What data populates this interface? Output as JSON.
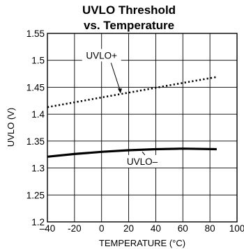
{
  "chart_data": {
    "type": "line",
    "title": [
      "UVLO Threshold",
      "vs. Temperature"
    ],
    "xlabel": "TEMPERATURE (°C)",
    "ylabel": "UVLO (V)",
    "xlim": [
      -40,
      100
    ],
    "ylim": [
      1.2,
      1.55
    ],
    "xticks": [
      -40,
      -20,
      0,
      20,
      40,
      60,
      80,
      100
    ],
    "xtick_labels": [
      "–40",
      "-20",
      "0",
      "20",
      "40",
      "60",
      "80",
      "100"
    ],
    "yticks": [
      1.2,
      1.25,
      1.3,
      1.35,
      1.4,
      1.45,
      1.5,
      1.55
    ],
    "ytick_labels": [
      "1.2",
      "1.25",
      "1.3",
      "1.35",
      "1.4",
      "1.45",
      "1.5",
      "1.55"
    ],
    "grid": true,
    "series": [
      {
        "name": "UVLO+",
        "style": "dotted",
        "x": [
          -40,
          -20,
          0,
          20,
          40,
          60,
          85
        ],
        "y": [
          1.413,
          1.422,
          1.431,
          1.44,
          1.449,
          1.458,
          1.469
        ]
      },
      {
        "name": "UVLO–",
        "style": "solid",
        "x": [
          -40,
          -20,
          0,
          20,
          40,
          60,
          85
        ],
        "y": [
          1.321,
          1.326,
          1.33,
          1.333,
          1.335,
          1.336,
          1.335
        ]
      }
    ],
    "annotations": [
      {
        "text": "UVLO+",
        "series": "UVLO+"
      },
      {
        "text": "UVLO–",
        "series": "UVLO–"
      }
    ]
  }
}
